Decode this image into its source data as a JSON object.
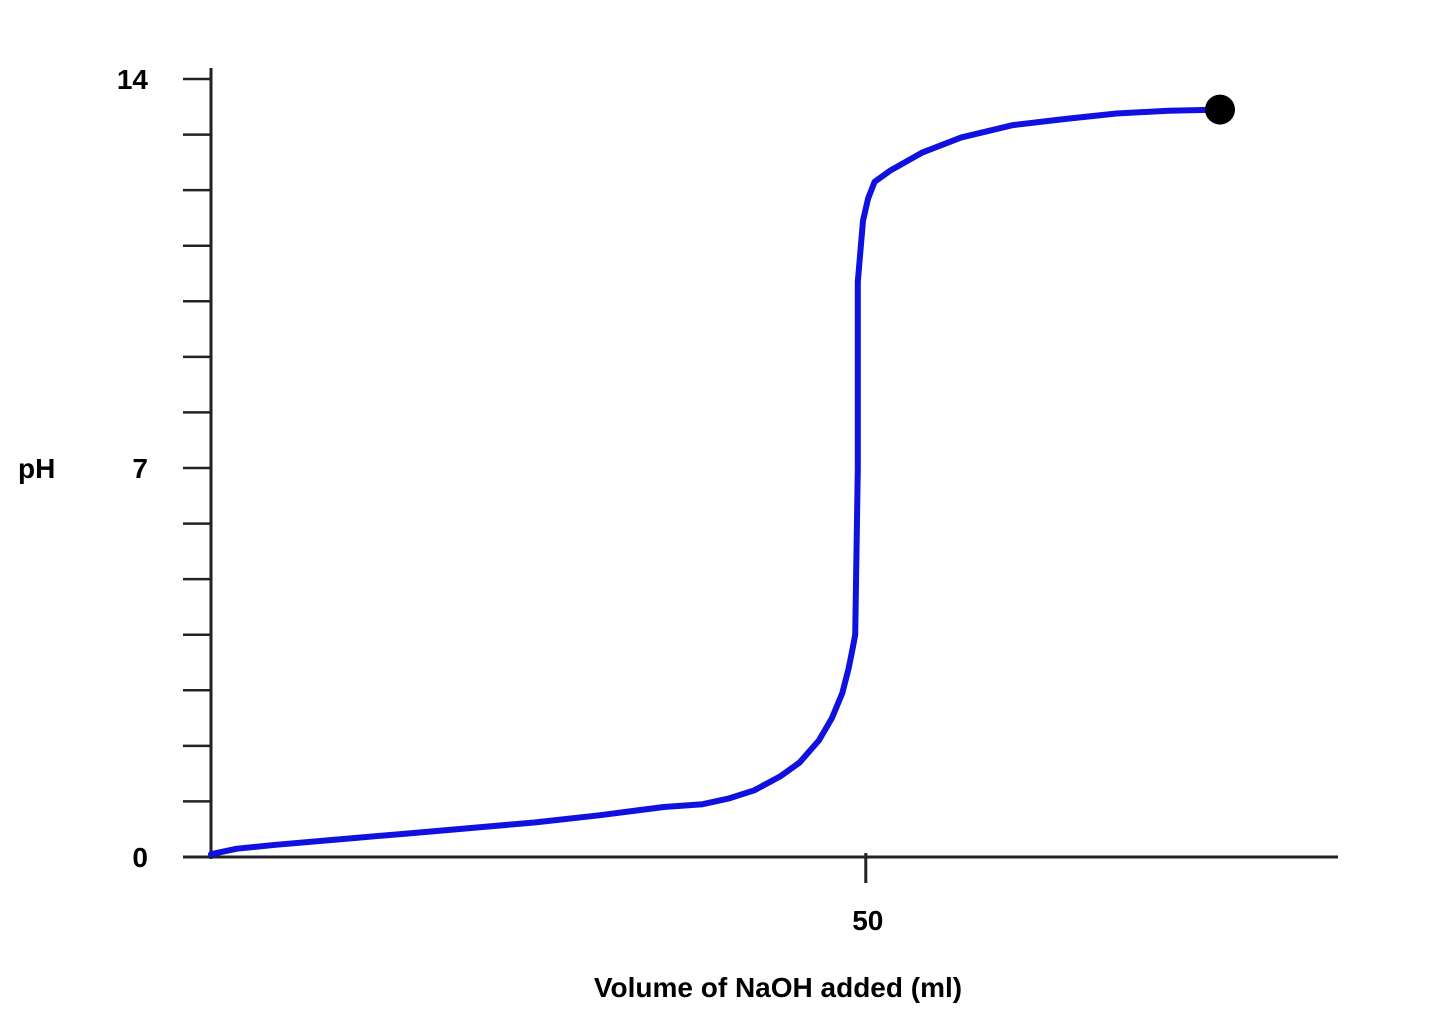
{
  "chart_data": {
    "type": "line",
    "title": "",
    "xlabel": "Volume of NaOH added (ml)",
    "ylabel": "pH",
    "xlim": [
      0,
      78
    ],
    "ylim": [
      0,
      14
    ],
    "x_tick_labels": [
      {
        "value": 50,
        "label": "50"
      }
    ],
    "y_tick_labels": [
      {
        "value": 0,
        "label": "0"
      },
      {
        "value": 7,
        "label": "7"
      },
      {
        "value": 14,
        "label": "14"
      }
    ],
    "y_minor_ticks": [
      1,
      2,
      3,
      4,
      5,
      6,
      8,
      9,
      10,
      11,
      12,
      13
    ],
    "series": [
      {
        "name": "pH",
        "color": "#1010e0",
        "x": [
          0,
          2,
          5,
          10,
          15,
          20,
          25,
          30,
          35,
          38,
          40,
          42,
          44,
          45.5,
          47,
          48,
          48.8,
          49.3,
          49.6,
          49.8,
          50,
          50,
          50.2,
          50.4,
          50.8,
          51.3,
          52.5,
          55,
          58,
          62,
          66,
          70,
          74,
          78
        ],
        "y": [
          0.05,
          0.15,
          0.22,
          0.32,
          0.42,
          0.52,
          0.62,
          0.75,
          0.9,
          0.95,
          1.05,
          1.2,
          1.45,
          1.7,
          2.1,
          2.5,
          2.95,
          3.4,
          3.75,
          4.0,
          7.0,
          10.35,
          10.9,
          11.45,
          11.85,
          12.15,
          12.35,
          12.68,
          12.95,
          13.17,
          13.28,
          13.38,
          13.43,
          13.45
        ]
      }
    ],
    "endpoint_marker": {
      "x": 78,
      "y": 13.45,
      "color": "#000000"
    }
  }
}
